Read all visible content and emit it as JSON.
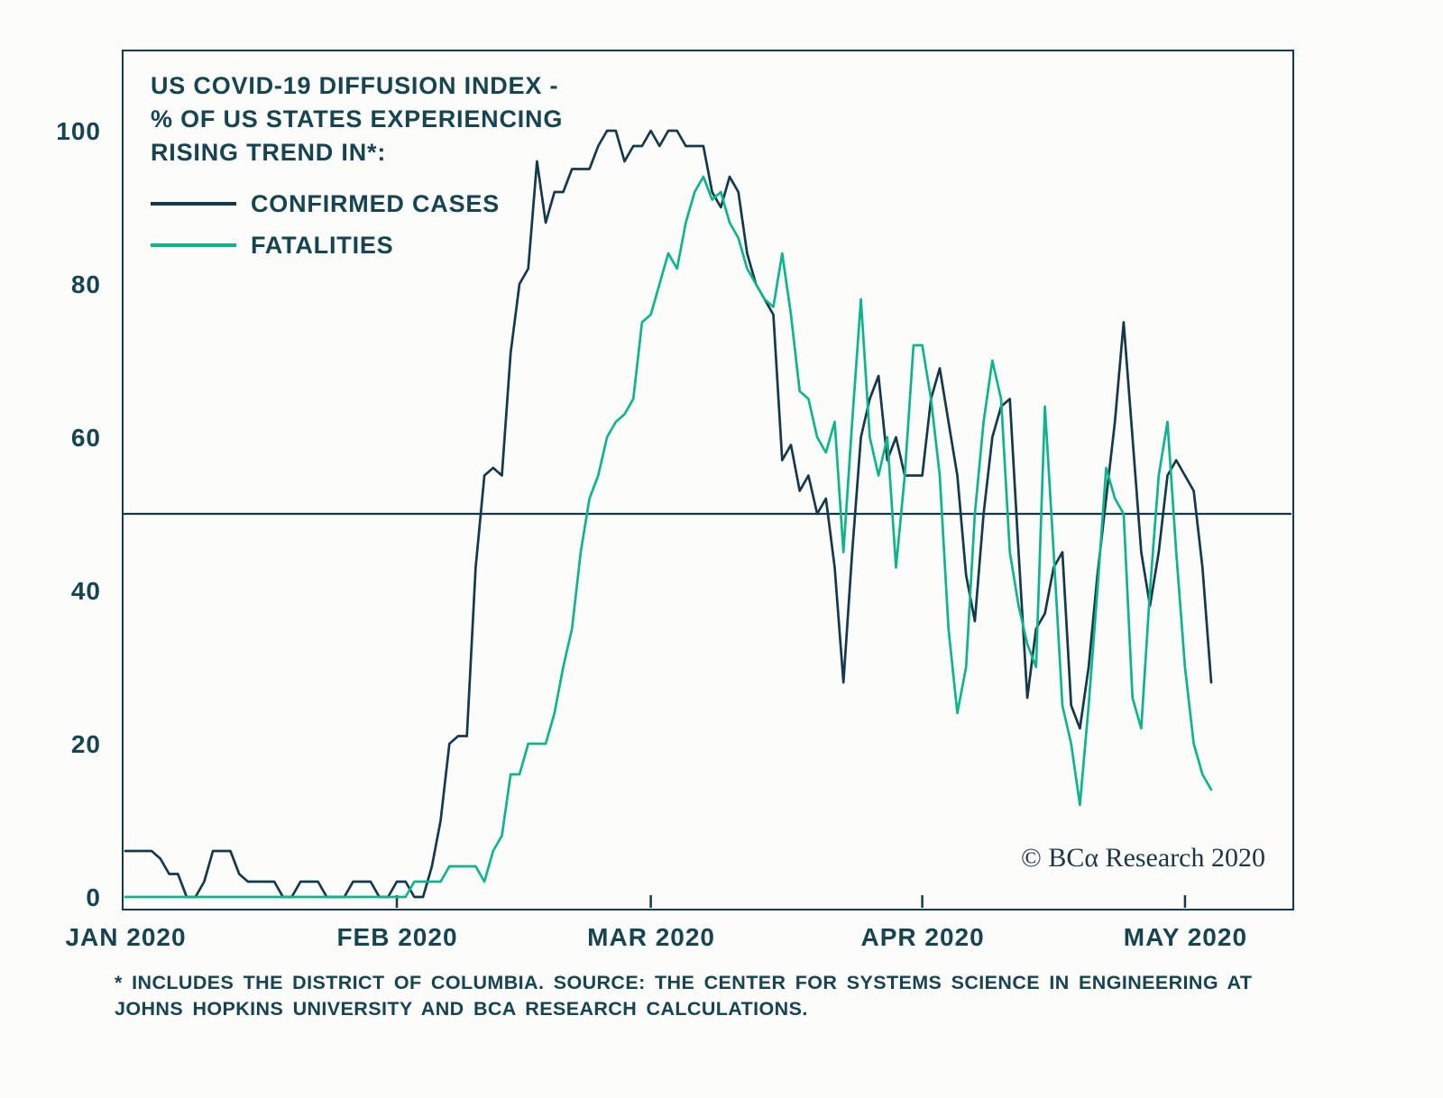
{
  "chart": {
    "title_lines": [
      "US COVID-19 DIFFUSION INDEX -",
      "% OF US STATES EXPERIENCING",
      "RISING TREND IN*:"
    ],
    "copyright": "© BCα Research 2020",
    "footnote_lines": [
      "* INCLUDES THE DISTRICT OF COLUMBIA. SOURCE: THE CENTER FOR SYSTEMS SCIENCE IN ENGINEERING AT",
      "JOHNS HOPKINS UNIVERSITY AND BCA RESEARCH CALCULATIONS."
    ]
  },
  "chart_data": {
    "type": "line",
    "title": "US COVID-19 DIFFUSION INDEX - % OF US STATES EXPERIENCING RISING TREND IN*:",
    "x_start_date": "2020-01-01",
    "x_unit": "day",
    "ylim": [
      0,
      100
    ],
    "y_ticks": [
      0,
      20,
      40,
      60,
      80,
      100
    ],
    "x_ticks": [
      {
        "label": "JAN 2020",
        "day": 0
      },
      {
        "label": "FEB 2020",
        "day": 31
      },
      {
        "label": "MAR 2020",
        "day": 60
      },
      {
        "label": "APR 2020",
        "day": 91
      },
      {
        "label": "MAY 2020",
        "day": 121
      }
    ],
    "reference_line_y": 50,
    "grid": false,
    "legend_position": "top-left",
    "series": [
      {
        "name": "CONFIRMED CASES",
        "color": "#15384a",
        "values": [
          6,
          6,
          6,
          6,
          5,
          3,
          3,
          0,
          0,
          2,
          6,
          6,
          6,
          3,
          2,
          2,
          2,
          2,
          0,
          0,
          2,
          2,
          2,
          0,
          0,
          0,
          2,
          2,
          2,
          0,
          0,
          2,
          2,
          0,
          0,
          4,
          10,
          20,
          21,
          21,
          43,
          55,
          56,
          55,
          71,
          80,
          82,
          96,
          88,
          92,
          92,
          95,
          95,
          95,
          98,
          100,
          100,
          96,
          98,
          98,
          100,
          98,
          100,
          100,
          98,
          98,
          98,
          92,
          90,
          94,
          92,
          84,
          80,
          78,
          76,
          57,
          59,
          53,
          55,
          50,
          52,
          43,
          28,
          45,
          60,
          65,
          68,
          57,
          60,
          55,
          55,
          55,
          65,
          69,
          62,
          55,
          42,
          36,
          50,
          60,
          64,
          65,
          45,
          26,
          35,
          37,
          43,
          45,
          25,
          22,
          30,
          42,
          52,
          62,
          75,
          60,
          45,
          38,
          45,
          55,
          57,
          55,
          53,
          43,
          28
        ]
      },
      {
        "name": "FATALITIES",
        "color": "#0eb48c",
        "values": [
          0,
          0,
          0,
          0,
          0,
          0,
          0,
          0,
          0,
          0,
          0,
          0,
          0,
          0,
          0,
          0,
          0,
          0,
          0,
          0,
          0,
          0,
          0,
          0,
          0,
          0,
          0,
          0,
          0,
          0,
          0,
          0,
          0,
          2,
          2,
          2,
          2,
          4,
          4,
          4,
          4,
          2,
          6,
          8,
          16,
          16,
          20,
          20,
          20,
          24,
          30,
          35,
          45,
          52,
          55,
          60,
          62,
          63,
          65,
          75,
          76,
          80,
          84,
          82,
          88,
          92,
          94,
          91,
          92,
          88,
          86,
          82,
          80,
          78,
          77,
          84,
          76,
          66,
          65,
          60,
          58,
          62,
          45,
          62,
          78,
          60,
          55,
          60,
          43,
          55,
          72,
          72,
          65,
          55,
          35,
          24,
          30,
          50,
          62,
          70,
          65,
          45,
          38,
          33,
          30,
          64,
          45,
          25,
          20,
          12,
          25,
          40,
          56,
          52,
          50,
          26,
          22,
          40,
          55,
          62,
          45,
          30,
          20,
          16,
          14
        ]
      }
    ]
  }
}
